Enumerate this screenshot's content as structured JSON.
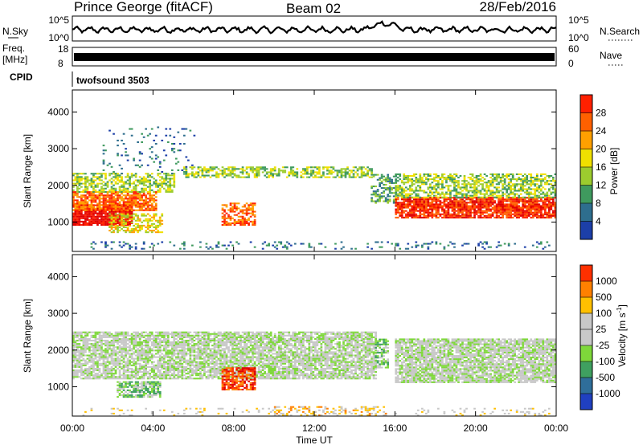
{
  "header": {
    "station": "Prince George (fitACF)",
    "beam": "Beam 02",
    "date": "28/Feb/2016"
  },
  "noise_panel": {
    "left_label": "N.Sky",
    "right_label": "N.Search",
    "left_ticks": [
      "10^5",
      "10^0"
    ],
    "right_ticks": [
      "10^5",
      "10^0"
    ]
  },
  "freq_panel": {
    "left_label": "Freq.",
    "left_unit": "[MHz]",
    "right_label": "Nave",
    "left_ticks": [
      "18",
      "8"
    ],
    "right_ticks": [
      "60",
      "0"
    ],
    "cpid_label": "CPID",
    "cpid_value": "twofsound 3503"
  },
  "colors": {
    "power_scale": [
      "#0000ff",
      "#1c3fa8",
      "#2e6e8e",
      "#3f9a5e",
      "#9ccc2e",
      "#f0e000",
      "#ffa000",
      "#ff6000",
      "#ff2000",
      "#e00000"
    ],
    "velocity_scale": [
      "#2040c0",
      "#2f6e9a",
      "#3fa060",
      "#7ed83a",
      "#c8c8c8",
      "#c8c8c8",
      "#ffc000",
      "#ff8000",
      "#ff3000",
      "#e00000"
    ]
  },
  "chart_data": [
    {
      "type": "heatmap",
      "name": "power",
      "ylabel": "Slant Range [km]",
      "yticks": [
        "1000",
        "2000",
        "3000",
        "4000"
      ],
      "ylim": [
        200,
        4600
      ],
      "colorbar_label": "Power [dB]",
      "colorbar_ticks": [
        "4",
        "8",
        "12",
        "16",
        "20",
        "24",
        "28"
      ],
      "regions": [
        {
          "t0": 0.0,
          "t1": 3.0,
          "r0": 900,
          "r1": 1450,
          "level": 9,
          "density": 0.9
        },
        {
          "t0": 0.0,
          "t1": 4.2,
          "r0": 1300,
          "r1": 1800,
          "level": 7,
          "density": 0.8
        },
        {
          "t0": 0.0,
          "t1": 5.0,
          "r0": 1800,
          "r1": 2300,
          "level": 4,
          "density": 0.6
        },
        {
          "t0": 1.8,
          "t1": 4.5,
          "r0": 700,
          "r1": 1200,
          "level": 5,
          "density": 0.55
        },
        {
          "t0": 5.5,
          "t1": 14.8,
          "r0": 2200,
          "r1": 2500,
          "level": 4,
          "density": 0.55
        },
        {
          "t0": 7.4,
          "t1": 9.0,
          "r0": 900,
          "r1": 1500,
          "level": 7,
          "density": 0.6
        },
        {
          "t0": 14.8,
          "t1": 16.0,
          "r0": 1500,
          "r1": 2300,
          "level": 3,
          "density": 0.5
        },
        {
          "t0": 16.0,
          "t1": 24.0,
          "r0": 1100,
          "r1": 1650,
          "level": 8,
          "density": 0.85
        },
        {
          "t0": 16.0,
          "t1": 24.0,
          "r0": 1650,
          "r1": 2300,
          "level": 4,
          "density": 0.6
        },
        {
          "t0": 0.5,
          "t1": 24.0,
          "r0": 250,
          "r1": 450,
          "level": 2,
          "density": 0.15
        },
        {
          "t0": 1.5,
          "t1": 6.0,
          "r0": 2300,
          "r1": 3600,
          "level": 2,
          "density": 0.08
        }
      ]
    },
    {
      "type": "heatmap",
      "name": "velocity",
      "ylabel": "Slant Range [km]",
      "xlabel": "Time UT",
      "xticks": [
        "00:00",
        "04:00",
        "08:00",
        "12:00",
        "16:00",
        "20:00",
        "00:00"
      ],
      "xlim": [
        0,
        24
      ],
      "yticks": [
        "1000",
        "2000",
        "3000",
        "4000"
      ],
      "ylim": [
        200,
        4600
      ],
      "colorbar_label": "Velocity [m s",
      "colorbar_label_sup": "-1",
      "colorbar_label_end": "]",
      "colorbar_ticks": [
        "1000",
        "500",
        "100",
        "25",
        "-25",
        "-100",
        "-500",
        "-1000"
      ],
      "regions": [
        {
          "t0": 0.0,
          "t1": 15.0,
          "r0": 1200,
          "r1": 2500,
          "level": 4,
          "density": 0.8
        },
        {
          "t0": 16.0,
          "t1": 24.0,
          "r0": 1100,
          "r1": 2300,
          "level": 4,
          "density": 0.85
        },
        {
          "t0": 2.2,
          "t1": 4.4,
          "r0": 700,
          "r1": 1150,
          "level": 3,
          "density": 0.8
        },
        {
          "t0": 7.4,
          "t1": 9.0,
          "r0": 900,
          "r1": 1500,
          "level": 8,
          "density": 0.8
        },
        {
          "t0": 15.0,
          "t1": 15.6,
          "r0": 1500,
          "r1": 2300,
          "level": 3,
          "density": 0.6
        },
        {
          "t0": 10.0,
          "t1": 15.5,
          "r0": 200,
          "r1": 450,
          "level": 6,
          "density": 0.35
        },
        {
          "t0": 0.5,
          "t1": 24.0,
          "r0": 200,
          "r1": 420,
          "level": 5,
          "density": 0.12
        }
      ]
    }
  ]
}
